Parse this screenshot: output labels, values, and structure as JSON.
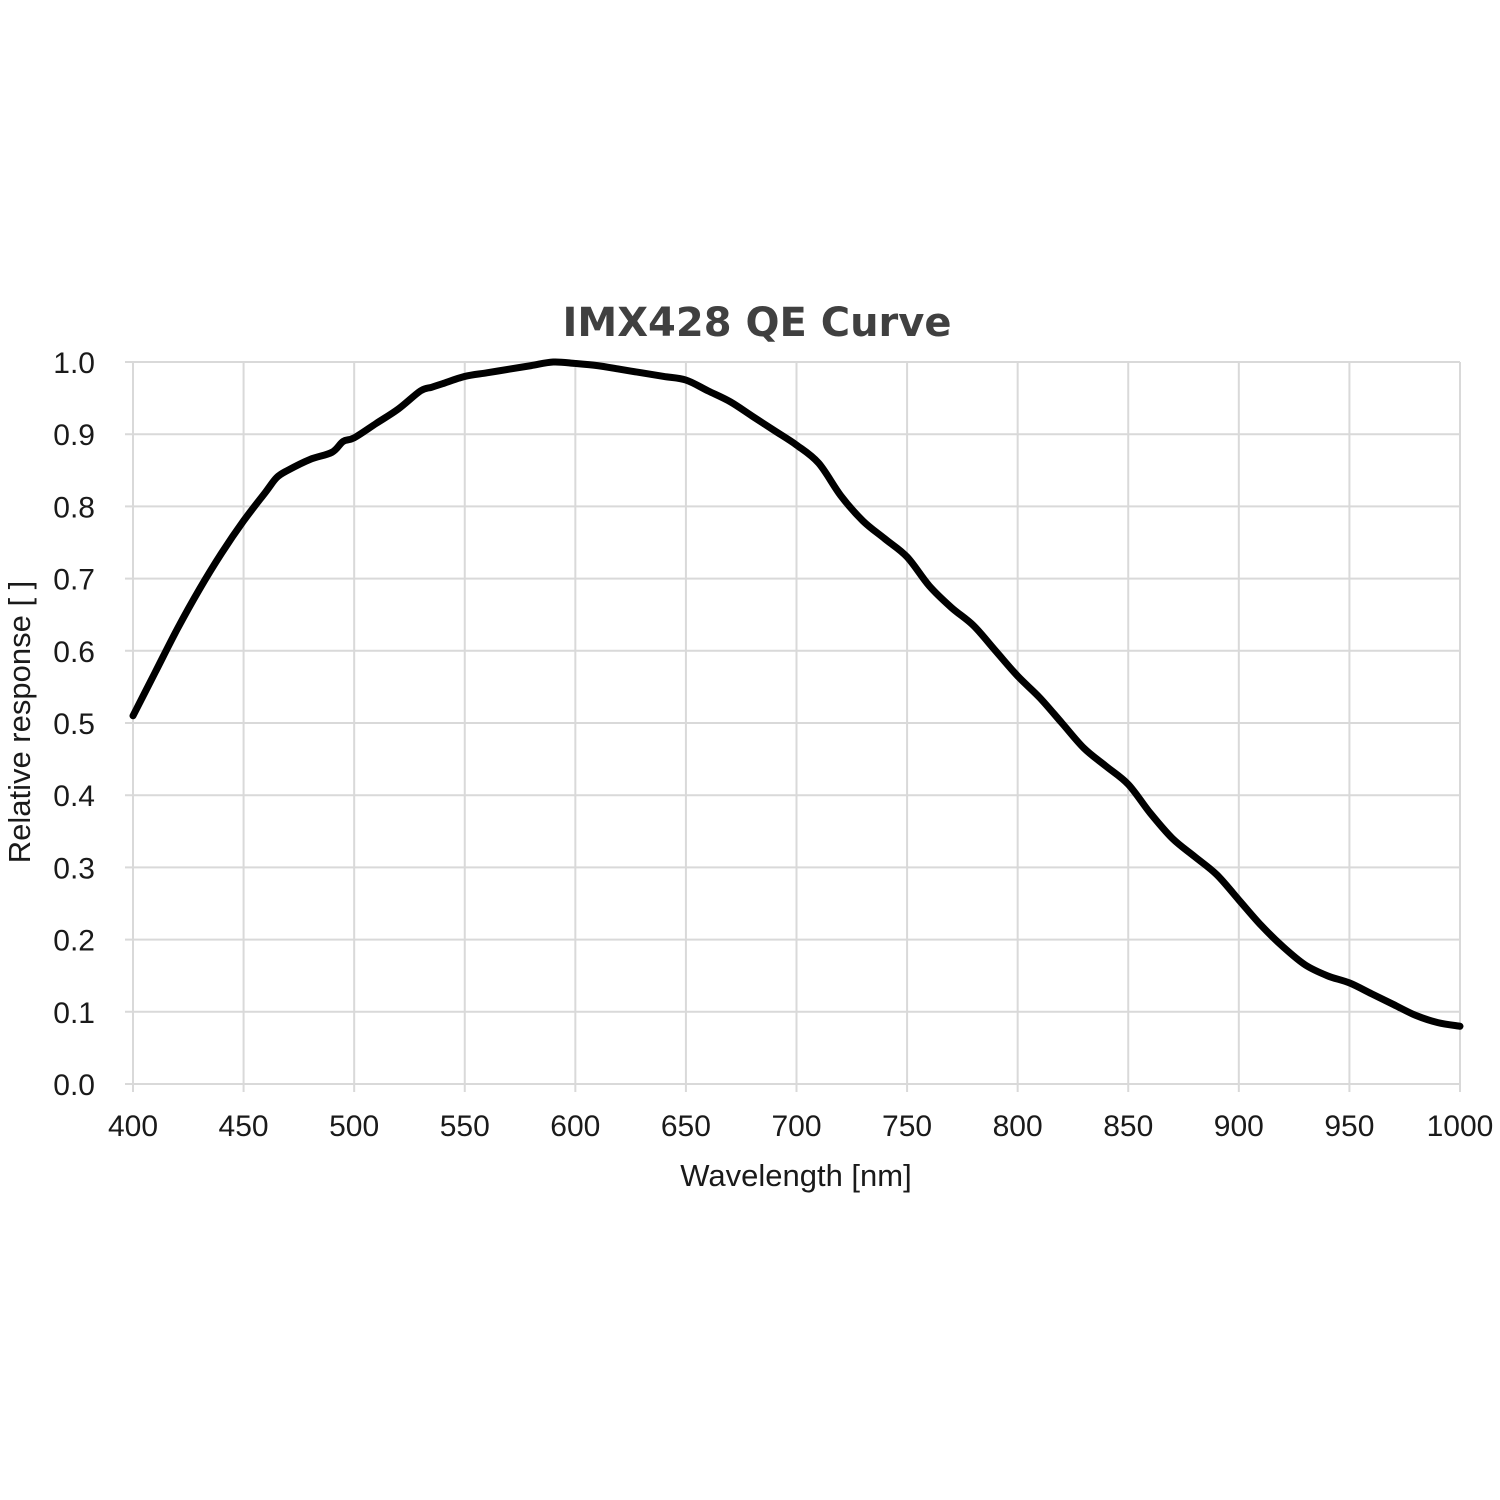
{
  "chart_data": {
    "type": "line",
    "title": "IMX428 QE Curve",
    "xlabel": "Wavelength [nm]",
    "ylabel": "Relative response [ ]",
    "xlim": [
      400,
      1000
    ],
    "ylim": [
      0.0,
      1.0
    ],
    "x_ticks": [
      "400",
      "450",
      "500",
      "550",
      "600",
      "650",
      "700",
      "750",
      "800",
      "850",
      "900",
      "950",
      "1000"
    ],
    "y_ticks": [
      "0.0",
      "0.1",
      "0.2",
      "0.3",
      "0.4",
      "0.5",
      "0.6",
      "0.7",
      "0.8",
      "0.9",
      "1.0"
    ],
    "grid": true,
    "legend": "none",
    "series_color": "#000000",
    "series": [
      {
        "x": [
          400,
          410,
          420,
          430,
          440,
          450,
          460,
          465,
          470,
          480,
          490,
          495,
          500,
          510,
          520,
          530,
          535,
          540,
          550,
          560,
          570,
          580,
          590,
          600,
          610,
          620,
          630,
          640,
          650,
          660,
          670,
          680,
          690,
          700,
          710,
          720,
          730,
          740,
          750,
          760,
          770,
          780,
          790,
          800,
          810,
          820,
          830,
          840,
          850,
          860,
          870,
          880,
          890,
          900,
          910,
          920,
          930,
          940,
          950,
          960,
          970,
          980,
          990,
          1000
        ],
        "y": [
          0.51,
          0.57,
          0.63,
          0.685,
          0.735,
          0.78,
          0.82,
          0.84,
          0.85,
          0.865,
          0.875,
          0.89,
          0.895,
          0.915,
          0.935,
          0.96,
          0.965,
          0.97,
          0.98,
          0.985,
          0.99,
          0.995,
          1.0,
          0.998,
          0.995,
          0.99,
          0.985,
          0.98,
          0.975,
          0.96,
          0.945,
          0.925,
          0.905,
          0.885,
          0.86,
          0.815,
          0.78,
          0.755,
          0.73,
          0.69,
          0.66,
          0.635,
          0.6,
          0.565,
          0.535,
          0.5,
          0.465,
          0.44,
          0.415,
          0.375,
          0.34,
          0.315,
          0.29,
          0.255,
          0.22,
          0.19,
          0.165,
          0.15,
          0.14,
          0.125,
          0.11,
          0.095,
          0.085,
          0.08
        ]
      }
    ]
  }
}
